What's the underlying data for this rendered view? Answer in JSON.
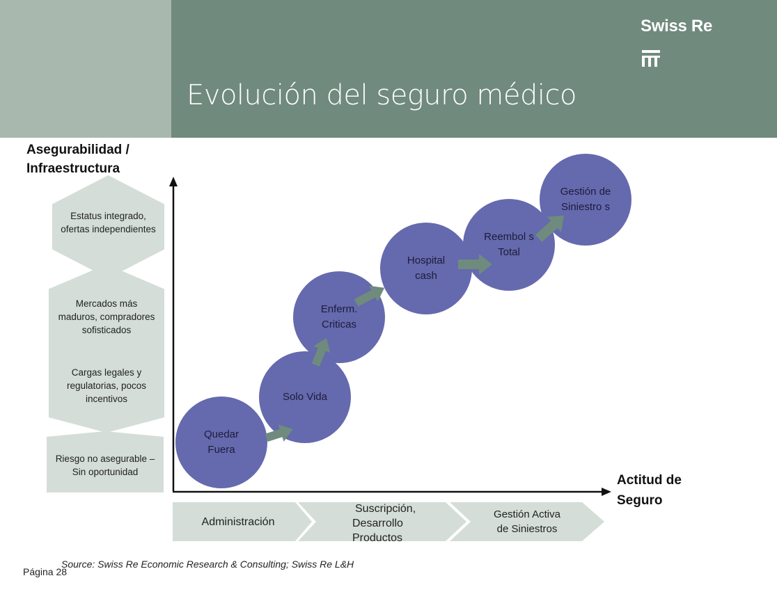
{
  "header": {
    "title": "Evolución del seguro médico",
    "logo_text": "Swiss Re",
    "colors": {
      "left_band": "#a8b8ae",
      "right_band": "#708a7e"
    }
  },
  "axes": {
    "y_label_line1": "Asegurabilidad /",
    "y_label_line2": "Infraestructura",
    "x_label_line1": "Actitud de",
    "x_label_line2": "Seguro"
  },
  "left_blocks": [
    {
      "text": "Estatus integrado, ofertas independientes"
    },
    {
      "text": "Mercados más maduros, compradores sofisticados"
    },
    {
      "text": "Cargas legales y regulatorias, pocos incentivos"
    },
    {
      "text": "Riesgo no asegurable – Sin oportunidad"
    }
  ],
  "stages": [
    {
      "text": "Quedar Fuera"
    },
    {
      "text": "Solo Vida"
    },
    {
      "text": "Enferm. Criticas"
    },
    {
      "text": "Hospital cash"
    },
    {
      "text": "Reembol s Total"
    },
    {
      "text": "Gestión de Siniestro s"
    }
  ],
  "bottom_steps": [
    {
      "lines": [
        "Administración"
      ]
    },
    {
      "lines": [
        "Suscripción,",
        "Desarrollo",
        "Productos"
      ]
    },
    {
      "lines": [
        "Gestión Activa",
        "de Siniestros"
      ]
    }
  ],
  "colors": {
    "circle": "#6569ad",
    "arrow": "#6f8b7d",
    "block": "#d4ddd7",
    "axis": "#111111"
  },
  "footer": {
    "source": "Source: Swiss Re Economic Research & Consulting; Swiss Re L&H",
    "page": "Página 28"
  }
}
